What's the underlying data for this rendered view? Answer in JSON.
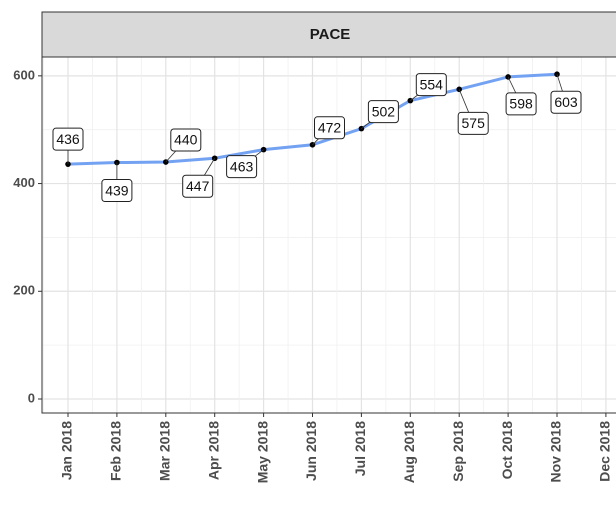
{
  "chart_data": {
    "type": "line",
    "title": "PACE",
    "categories": [
      "Jan 2018",
      "Feb 2018",
      "Mar 2018",
      "Apr 2018",
      "May 2018",
      "Jun 2018",
      "Jul 2018",
      "Aug 2018",
      "Sep 2018",
      "Oct 2018",
      "Nov 2018",
      "Dec 2018"
    ],
    "values": [
      436,
      439,
      440,
      447,
      463,
      472,
      502,
      554,
      575,
      598,
      603,
      null
    ],
    "color": "#74a2f2",
    "ylim": [
      -26,
      635
    ],
    "yticks": [
      0,
      200,
      400,
      600
    ],
    "grid": true
  }
}
